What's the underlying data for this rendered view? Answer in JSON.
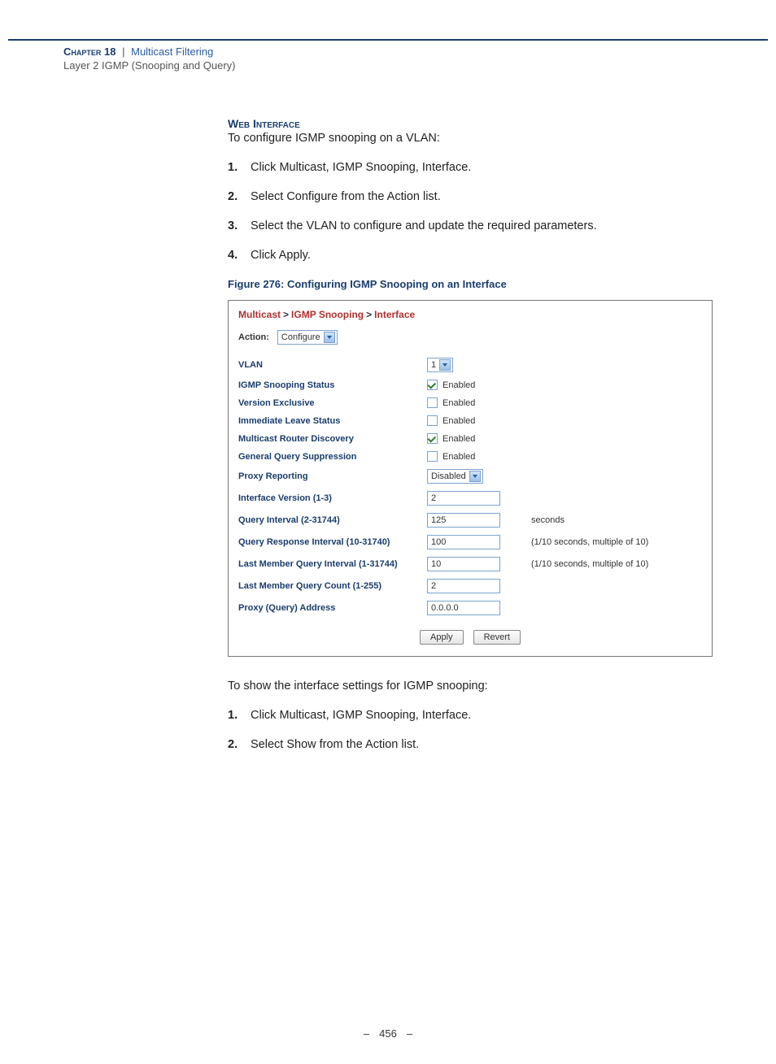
{
  "header": {
    "chapter_label": "Chapter 18",
    "separator": "|",
    "title": "Multicast Filtering",
    "subtitle": "Layer 2 IGMP (Snooping and Query)"
  },
  "section": {
    "heading": "Web Interface",
    "intro": "To configure IGMP snooping on a VLAN:",
    "steps": [
      "Click Multicast, IGMP Snooping, Interface.",
      "Select Configure from the Action list.",
      "Select the VLAN to configure and update the required parameters.",
      "Click Apply."
    ],
    "figure_caption": "Figure 276:  Configuring IGMP Snooping on an Interface",
    "outro": "To show the interface settings for IGMP snooping:",
    "steps2": [
      "Click Multicast, IGMP Snooping, Interface.",
      "Select Show from the Action list."
    ]
  },
  "panel": {
    "breadcrumb": {
      "a": "Multicast",
      "b": "IGMP Snooping",
      "c": "Interface"
    },
    "action_label": "Action:",
    "action_value": "Configure",
    "rows": {
      "vlan": {
        "label": "VLAN",
        "value": "1"
      },
      "snoop_status": {
        "label": "IGMP Snooping Status",
        "checked": true,
        "text": "Enabled"
      },
      "version_excl": {
        "label": "Version Exclusive",
        "checked": false,
        "text": "Enabled"
      },
      "imm_leave": {
        "label": "Immediate Leave Status",
        "checked": false,
        "text": "Enabled"
      },
      "mrouter_disc": {
        "label": "Multicast Router Discovery",
        "checked": true,
        "text": "Enabled"
      },
      "gen_query_supp": {
        "label": "General Query Suppression",
        "checked": false,
        "text": "Enabled"
      },
      "proxy_report": {
        "label": "Proxy Reporting",
        "value": "Disabled"
      },
      "if_version": {
        "label": "Interface Version (1-3)",
        "value": "2"
      },
      "query_interval": {
        "label": "Query Interval (2-31744)",
        "value": "125",
        "hint": "seconds"
      },
      "query_resp": {
        "label": "Query Response Interval (10-31740)",
        "value": "100",
        "hint": "(1/10 seconds, multiple of 10)"
      },
      "last_mem_int": {
        "label": "Last Member Query Interval (1-31744)",
        "value": "10",
        "hint": "(1/10 seconds, multiple of 10)"
      },
      "last_mem_cnt": {
        "label": "Last Member Query Count (1-255)",
        "value": "2"
      },
      "proxy_addr": {
        "label": "Proxy (Query) Address",
        "value": "0.0.0.0"
      }
    },
    "buttons": {
      "apply": "Apply",
      "revert": "Revert"
    }
  },
  "footer": {
    "page": "456"
  },
  "colors": {
    "accent": "#1a3d6d",
    "link": "#2a5ca0",
    "crumb": "#b03030"
  }
}
